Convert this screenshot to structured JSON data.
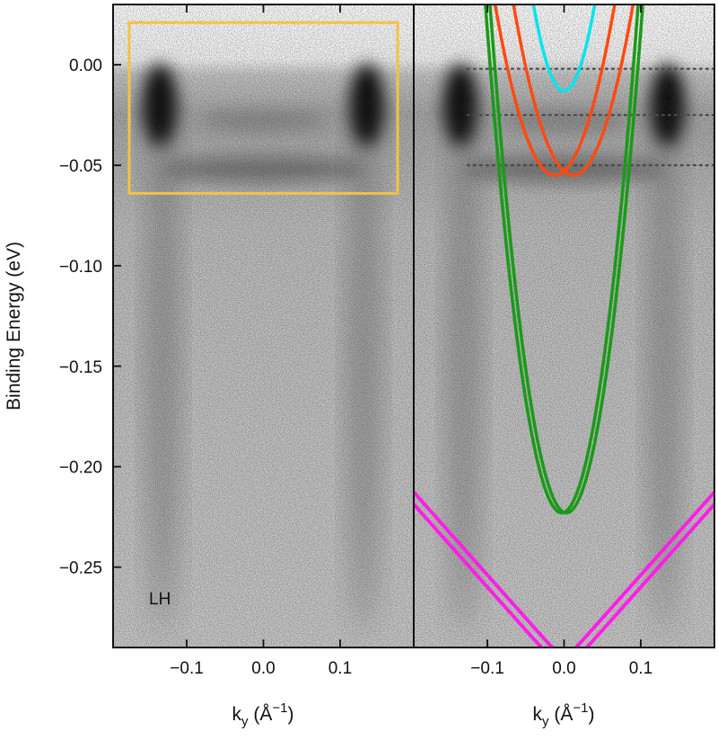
{
  "chart_data": [
    {
      "type": "heatmap",
      "panel": "left",
      "xlabel_main": "k",
      "xlabel_sub": "y",
      "xlabel_unit": " (Å",
      "xlabel_exp": "−1",
      "xlabel_close": ")",
      "ylabel": "Binding Energy (eV)",
      "annotation": "LH",
      "xlim": [
        -0.196,
        0.196
      ],
      "ylim": [
        -0.29,
        0.03
      ],
      "x_ticks": [
        -0.1,
        0.0,
        0.1
      ],
      "x_tick_labels": [
        "−0.1",
        "0.0",
        "0.1"
      ],
      "y_ticks": [
        0.0,
        -0.05,
        -0.1,
        -0.15,
        -0.2,
        -0.25
      ],
      "y_tick_labels": [
        "0.00",
        "−0.05",
        "−0.10",
        "−0.15",
        "−0.20",
        "−0.25"
      ],
      "highlight_box": {
        "x": [
          -0.175,
          0.175
        ],
        "y": [
          -0.064,
          0.021
        ],
        "color": "#f5c242"
      },
      "intensity_features": [
        {
          "type": "hot_spot",
          "k": -0.135,
          "e": -0.02
        },
        {
          "type": "hot_spot",
          "k": 0.135,
          "e": -0.02
        },
        {
          "type": "flat_band",
          "e": -0.052
        }
      ]
    },
    {
      "type": "line",
      "panel": "right",
      "xlabel_main": "k",
      "xlabel_sub": "y",
      "xlabel_unit": " (Å",
      "xlabel_exp": "−1",
      "xlabel_close": ")",
      "xlim": [
        -0.196,
        0.196
      ],
      "ylim": [
        -0.29,
        0.03
      ],
      "x_ticks": [
        -0.1,
        0.0,
        0.1
      ],
      "x_tick_labels": [
        "−0.1",
        "0.0",
        "0.1"
      ],
      "reference_lines": [
        -0.002,
        -0.025,
        -0.05
      ],
      "series": [
        {
          "color": "#00e5ee",
          "shape": "parabola",
          "k0": 0.0,
          "e0": -0.013,
          "a": 27,
          "width": 3.5
        },
        {
          "color": "#ff4a12",
          "shape": "parabola",
          "k0": -0.012,
          "e0": -0.055,
          "a": 14,
          "width": 3.5
        },
        {
          "color": "#ff4a12",
          "shape": "parabola",
          "k0": 0.012,
          "e0": -0.055,
          "a": 14,
          "width": 3.5
        },
        {
          "color": "#1a9a1a",
          "shape": "parabola",
          "k0": -0.003,
          "e0": -0.223,
          "a": 25.5,
          "width": 3.5
        },
        {
          "color": "#1a9a1a",
          "shape": "parabola",
          "k0": 0.003,
          "e0": -0.223,
          "a": 25.5,
          "width": 3.5
        },
        {
          "color": "#ff1ee6",
          "shape": "hyperbola",
          "k0": -0.007,
          "e0": -0.3,
          "b": 0.43,
          "c": 0.006,
          "width": 4
        },
        {
          "color": "#ff1ee6",
          "shape": "hyperbola",
          "k0": 0.007,
          "e0": -0.3,
          "b": 0.43,
          "c": 0.006,
          "width": 4
        }
      ]
    }
  ]
}
